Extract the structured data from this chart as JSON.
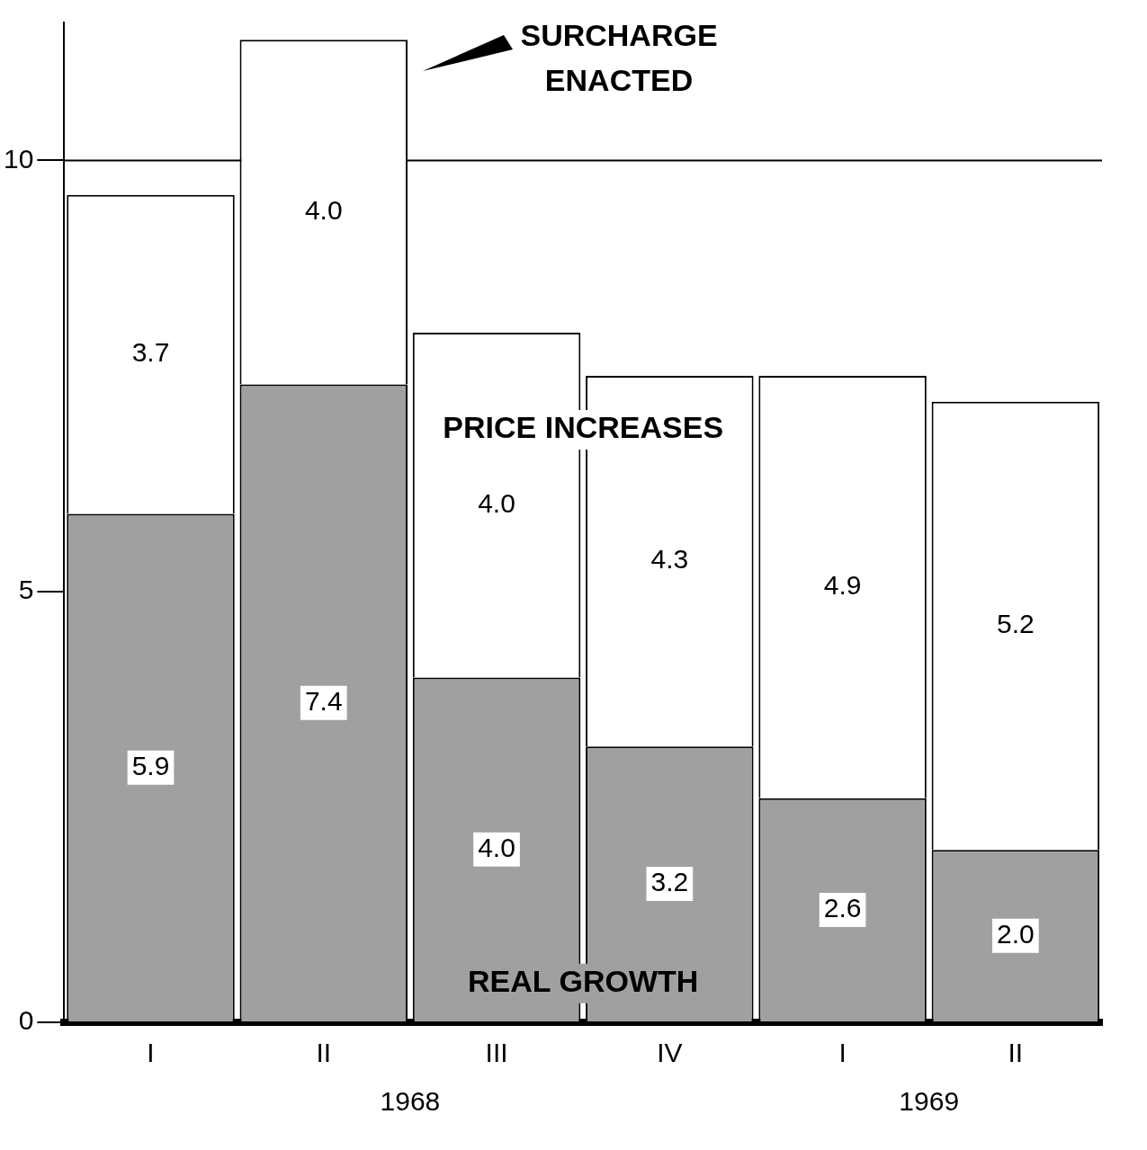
{
  "chart_data": {
    "type": "bar",
    "stacked": true,
    "categories": [
      "I",
      "II",
      "III",
      "IV",
      "I",
      "II"
    ],
    "series": [
      {
        "name": "REAL GROWTH",
        "color": "#a0a0a0",
        "values": [
          5.9,
          7.4,
          4.0,
          3.2,
          2.6,
          2.0
        ],
        "value_labels": [
          "5.9",
          "7.4",
          "4.0",
          "3.2",
          "2.6",
          "2.0"
        ]
      },
      {
        "name": "PRICE INCREASES",
        "color": "#ffffff",
        "values": [
          3.7,
          4.0,
          4.0,
          4.3,
          4.9,
          5.2
        ],
        "value_labels": [
          "3.7",
          "4.0",
          "4.0",
          "4.3",
          "4.9",
          "5.2"
        ]
      }
    ],
    "ylim": [
      0,
      11.6
    ],
    "yticks": [
      0,
      5,
      10
    ],
    "ref_lines": [
      {
        "axis": "y",
        "value": 10,
        "color": "#000000"
      }
    ],
    "annotations": [
      "SURCHARGE\nENACTED",
      "1968",
      "1969"
    ],
    "grid": false,
    "legend": false
  }
}
